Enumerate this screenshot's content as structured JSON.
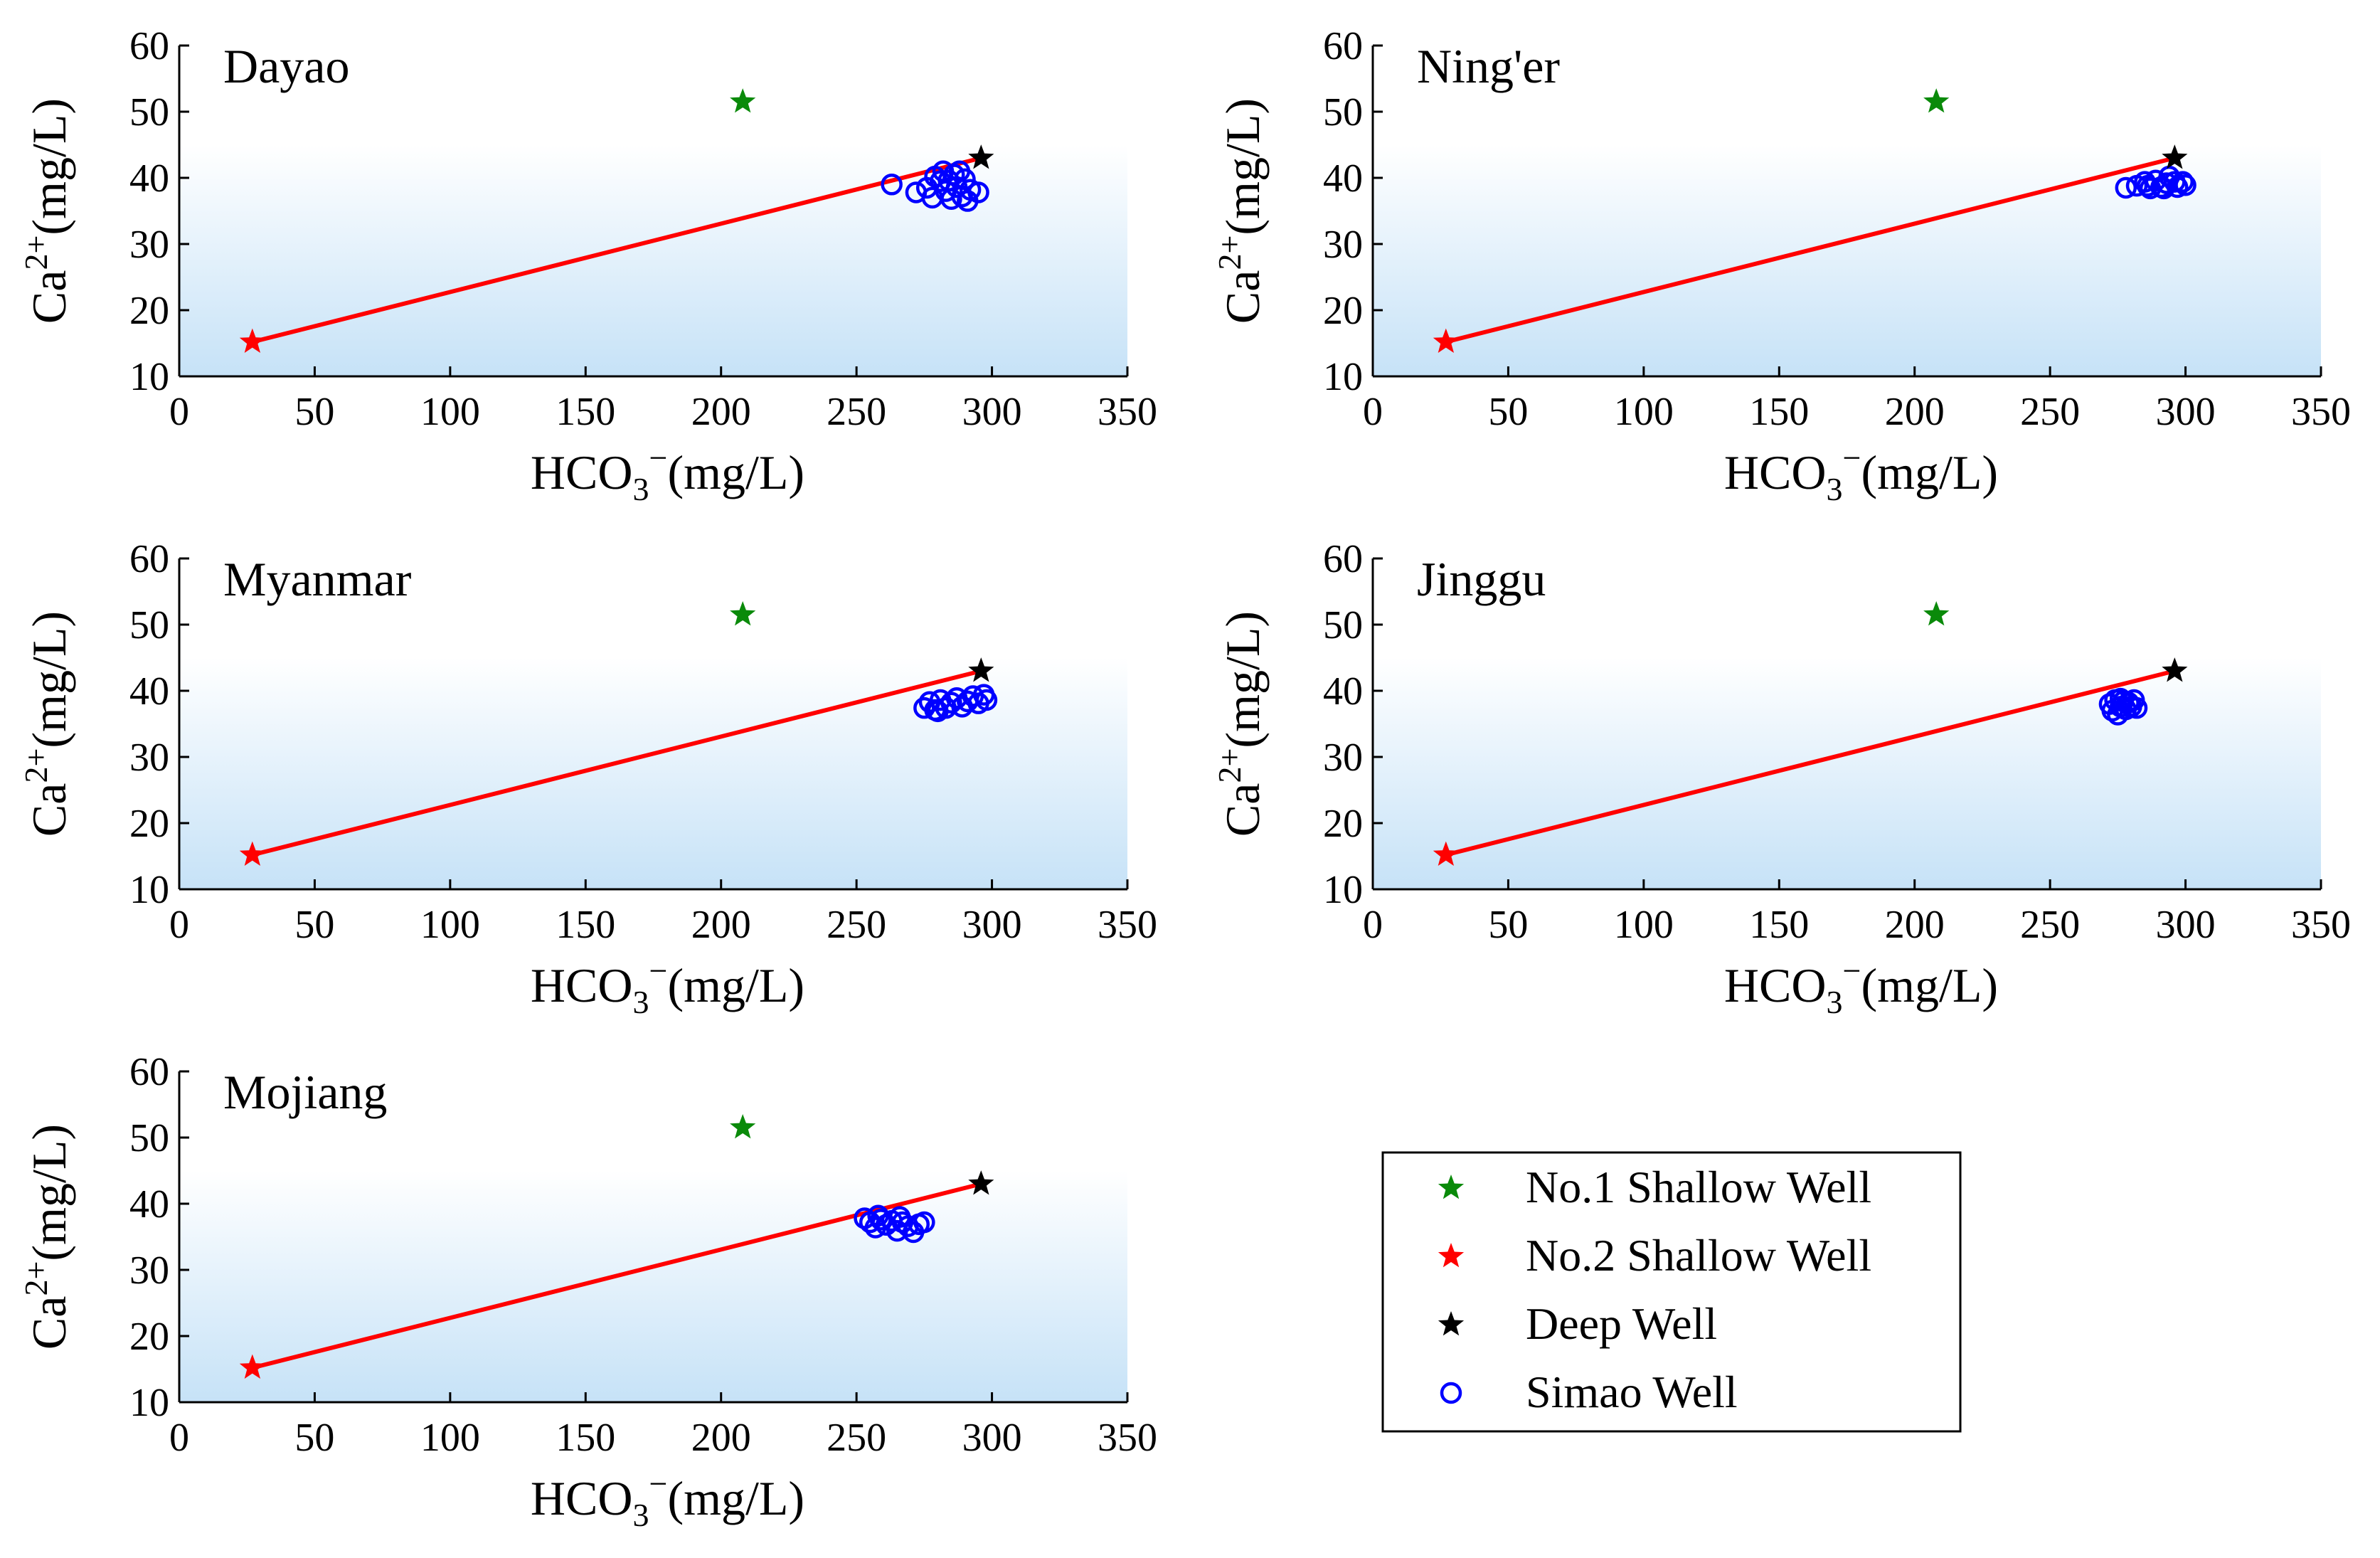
{
  "legend": {
    "entries": [
      {
        "label": "No.1 Shallow Well",
        "color": "#0a8a0a",
        "marker": "star-icon"
      },
      {
        "label": "No.2 Shallow Well",
        "color": "#ff0000",
        "marker": "star-icon"
      },
      {
        "label": "Deep Well",
        "color": "#000000",
        "marker": "star-icon"
      },
      {
        "label": "Simao Well",
        "color": "#0000ff",
        "marker": "open-circle-icon"
      }
    ]
  },
  "colors": {
    "line": "#ff0000",
    "shallow1": "#0a8a0a",
    "shallow2": "#ff0000",
    "deep": "#000000",
    "simao": "#0000ff",
    "band_top": "#ffffff",
    "band_bottom": "#c6e2f7"
  },
  "chart_data": [
    {
      "type": "scatter",
      "title": "Dayao",
      "xlabel": "HCO3−(mg/L)",
      "ylabel": "Ca2+(mg/L)",
      "xlim": [
        0,
        350
      ],
      "ylim": [
        10,
        60
      ],
      "xticks": [
        0,
        50,
        100,
        150,
        200,
        250,
        300,
        350
      ],
      "yticks": [
        10,
        20,
        30,
        40,
        50,
        60
      ],
      "shallow1": {
        "x": 208,
        "y": 51.5
      },
      "shallow2": {
        "x": 27,
        "y": 15.2
      },
      "deep": {
        "x": 296,
        "y": 43
      },
      "mixing_line": [
        [
          27,
          15.2
        ],
        [
          296,
          43
        ]
      ],
      "simao": [
        {
          "x": 263,
          "y": 39
        },
        {
          "x": 272,
          "y": 37.8
        },
        {
          "x": 276,
          "y": 38.5
        },
        {
          "x": 279,
          "y": 40.2
        },
        {
          "x": 281,
          "y": 39.5
        },
        {
          "x": 283,
          "y": 38
        },
        {
          "x": 285,
          "y": 36.8
        },
        {
          "x": 286,
          "y": 40.5
        },
        {
          "x": 287,
          "y": 38.6
        },
        {
          "x": 289,
          "y": 37.2
        },
        {
          "x": 290,
          "y": 39.8
        },
        {
          "x": 291,
          "y": 36.5
        },
        {
          "x": 292,
          "y": 38.2
        },
        {
          "x": 295,
          "y": 37.8
        },
        {
          "x": 288,
          "y": 41
        },
        {
          "x": 282,
          "y": 41
        },
        {
          "x": 278,
          "y": 37
        },
        {
          "x": 284,
          "y": 39.6
        }
      ]
    },
    {
      "type": "scatter",
      "title": "Ning'er",
      "xlabel": "HCO3−(mg/L)",
      "ylabel": "Ca2+(mg/L)",
      "xlim": [
        0,
        350
      ],
      "ylim": [
        10,
        60
      ],
      "xticks": [
        0,
        50,
        100,
        150,
        200,
        250,
        300,
        350
      ],
      "yticks": [
        10,
        20,
        30,
        40,
        50,
        60
      ],
      "shallow1": {
        "x": 208,
        "y": 51.5
      },
      "shallow2": {
        "x": 27,
        "y": 15.2
      },
      "deep": {
        "x": 296,
        "y": 43
      },
      "mixing_line": [
        [
          27,
          15.2
        ],
        [
          296,
          43
        ]
      ],
      "simao": [
        {
          "x": 278,
          "y": 38.5
        },
        {
          "x": 282,
          "y": 38.8
        },
        {
          "x": 285,
          "y": 39.4
        },
        {
          "x": 287,
          "y": 38.4
        },
        {
          "x": 289,
          "y": 39.6
        },
        {
          "x": 291,
          "y": 38.6
        },
        {
          "x": 293,
          "y": 39.2
        },
        {
          "x": 294,
          "y": 40.2
        },
        {
          "x": 296,
          "y": 39.4
        },
        {
          "x": 297,
          "y": 38.6
        },
        {
          "x": 299,
          "y": 39.4
        },
        {
          "x": 300,
          "y": 38.9
        },
        {
          "x": 292,
          "y": 38.4
        },
        {
          "x": 286,
          "y": 38.8
        }
      ]
    },
    {
      "type": "scatter",
      "title": "Myanmar",
      "xlabel": "HCO3−(mg/L)",
      "ylabel": "Ca2+(mg/L)",
      "xlim": [
        0,
        350
      ],
      "ylim": [
        10,
        60
      ],
      "xticks": [
        0,
        50,
        100,
        150,
        200,
        250,
        300,
        350
      ],
      "yticks": [
        10,
        20,
        30,
        40,
        50,
        60
      ],
      "shallow1": {
        "x": 208,
        "y": 51.5
      },
      "shallow2": {
        "x": 27,
        "y": 15.2
      },
      "deep": {
        "x": 296,
        "y": 43
      },
      "mixing_line": [
        [
          27,
          15.2
        ],
        [
          296,
          43
        ]
      ],
      "simao": [
        {
          "x": 275,
          "y": 37.4
        },
        {
          "x": 277,
          "y": 38.3
        },
        {
          "x": 279,
          "y": 37.1
        },
        {
          "x": 281,
          "y": 38.6
        },
        {
          "x": 283,
          "y": 37.4
        },
        {
          "x": 285,
          "y": 38.2
        },
        {
          "x": 287,
          "y": 38.9
        },
        {
          "x": 289,
          "y": 37.6
        },
        {
          "x": 291,
          "y": 38.4
        },
        {
          "x": 293,
          "y": 39.2
        },
        {
          "x": 295,
          "y": 38.1
        },
        {
          "x": 297,
          "y": 39.4
        },
        {
          "x": 298,
          "y": 38.6
        },
        {
          "x": 280,
          "y": 36.9
        }
      ]
    },
    {
      "type": "scatter",
      "title": "Jinggu",
      "xlabel": "HCO3−(mg/L)",
      "ylabel": "Ca2+(mg/L)",
      "xlim": [
        0,
        350
      ],
      "ylim": [
        10,
        60
      ],
      "xticks": [
        0,
        50,
        100,
        150,
        200,
        250,
        300,
        350
      ],
      "yticks": [
        10,
        20,
        30,
        40,
        50,
        60
      ],
      "shallow1": {
        "x": 208,
        "y": 51.5
      },
      "shallow2": {
        "x": 27,
        "y": 15.2
      },
      "deep": {
        "x": 296,
        "y": 43
      },
      "mixing_line": [
        [
          27,
          15.2
        ],
        [
          296,
          43
        ]
      ],
      "simao": [
        {
          "x": 272,
          "y": 38
        },
        {
          "x": 273,
          "y": 37
        },
        {
          "x": 274,
          "y": 38.6
        },
        {
          "x": 275,
          "y": 36.4
        },
        {
          "x": 276,
          "y": 37.6
        },
        {
          "x": 277,
          "y": 38.4
        },
        {
          "x": 278,
          "y": 37.2
        },
        {
          "x": 279,
          "y": 38.2
        },
        {
          "x": 280,
          "y": 37.6
        },
        {
          "x": 281,
          "y": 38.6
        },
        {
          "x": 282,
          "y": 37.4
        },
        {
          "x": 276,
          "y": 38.8
        }
      ]
    },
    {
      "type": "scatter",
      "title": "Mojiang",
      "xlabel": "HCO3−(mg/L)",
      "ylabel": "Ca2+(mg/L)",
      "xlim": [
        0,
        350
      ],
      "ylim": [
        10,
        60
      ],
      "xticks": [
        0,
        50,
        100,
        150,
        200,
        250,
        300,
        350
      ],
      "yticks": [
        10,
        20,
        30,
        40,
        50,
        60
      ],
      "shallow1": {
        "x": 208,
        "y": 51.5
      },
      "shallow2": {
        "x": 27,
        "y": 15.2
      },
      "deep": {
        "x": 296,
        "y": 43
      },
      "mixing_line": [
        [
          27,
          15.2
        ],
        [
          296,
          43
        ]
      ],
      "simao": [
        {
          "x": 253,
          "y": 37.8
        },
        {
          "x": 255,
          "y": 37.2
        },
        {
          "x": 257,
          "y": 36.4
        },
        {
          "x": 259,
          "y": 37.6
        },
        {
          "x": 261,
          "y": 36.8
        },
        {
          "x": 263,
          "y": 37.4
        },
        {
          "x": 265,
          "y": 35.9
        },
        {
          "x": 267,
          "y": 37.2
        },
        {
          "x": 269,
          "y": 36.6
        },
        {
          "x": 271,
          "y": 35.7
        },
        {
          "x": 273,
          "y": 36.9
        },
        {
          "x": 275,
          "y": 37.2
        },
        {
          "x": 258,
          "y": 38.2
        },
        {
          "x": 266,
          "y": 38
        }
      ]
    }
  ]
}
